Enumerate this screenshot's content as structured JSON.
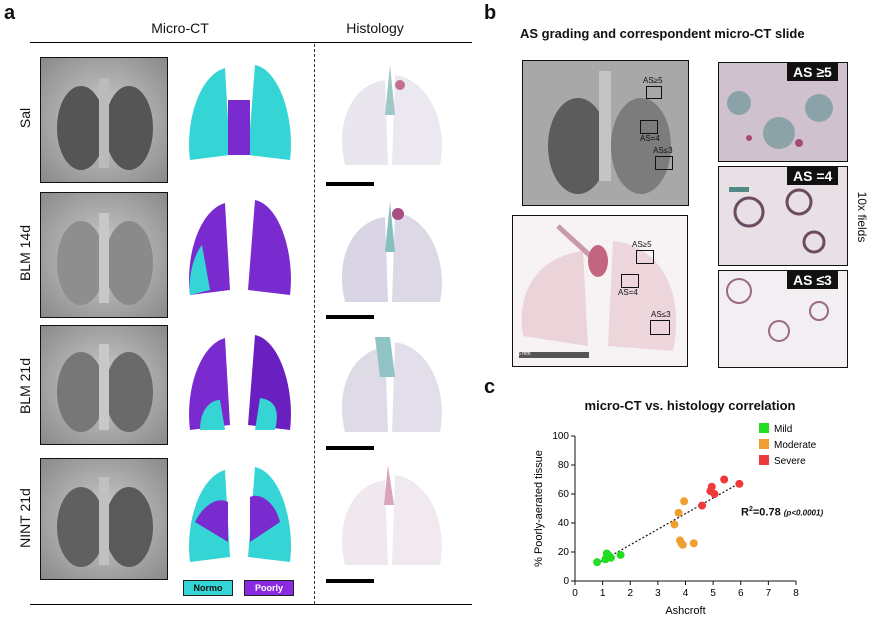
{
  "panel_a": {
    "letter": "a",
    "col_microct": "Micro-CT",
    "col_histology": "Histology",
    "rows": [
      "Sal",
      "BLM 14d",
      "BLM 21d",
      "NINT 21d"
    ],
    "legend": {
      "normo": "Normo",
      "poorly": "Poorly",
      "normo_color": "#35d5d5",
      "poorly_color": "#8a2be2"
    }
  },
  "panel_b": {
    "letter": "b",
    "title": "AS grading and correspondent micro-CT slide",
    "roi": [
      "AS≥5",
      "AS=4",
      "AS≤3"
    ],
    "fields": [
      "AS ≥5",
      "AS =4",
      "AS ≤3"
    ],
    "side_label": "10x fields",
    "scale_label": "5 mm"
  },
  "panel_c": {
    "letter": "c",
    "title": "micro-CT vs. histology correlation",
    "r2_text": "R",
    "r2_sup": "2",
    "r2_value": "=0.78",
    "p_text": "(p<0.0001)"
  },
  "chart_data": {
    "type": "scatter",
    "title": "micro-CT vs. histology correlation",
    "xlabel": "Ashcroft",
    "ylabel": "% Poorly-aerated tissue",
    "xlim": [
      0,
      8
    ],
    "ylim": [
      0,
      100
    ],
    "xticks": [
      0,
      1,
      2,
      3,
      4,
      5,
      6,
      7,
      8
    ],
    "yticks": [
      0,
      20,
      40,
      60,
      80,
      100
    ],
    "legend": [
      {
        "name": "Mild",
        "color": "#22dd22"
      },
      {
        "name": "Moderate",
        "color": "#f0a030"
      },
      {
        "name": "Severe",
        "color": "#ee3a3a"
      }
    ],
    "series": [
      {
        "name": "Mild",
        "color": "#22dd22",
        "points": [
          [
            0.8,
            13
          ],
          [
            1.1,
            15
          ],
          [
            1.15,
            19
          ],
          [
            1.2,
            18
          ],
          [
            1.25,
            17
          ],
          [
            1.3,
            16
          ],
          [
            1.65,
            18
          ]
        ]
      },
      {
        "name": "Moderate",
        "color": "#f0a030",
        "points": [
          [
            3.6,
            39
          ],
          [
            3.75,
            47
          ],
          [
            3.8,
            28
          ],
          [
            3.85,
            26
          ],
          [
            3.9,
            25
          ],
          [
            3.95,
            55
          ],
          [
            4.3,
            26
          ]
        ]
      },
      {
        "name": "Severe",
        "color": "#ee3a3a",
        "points": [
          [
            4.6,
            52
          ],
          [
            4.9,
            62
          ],
          [
            4.95,
            65
          ],
          [
            5.05,
            60
          ],
          [
            5.4,
            70
          ],
          [
            5.95,
            67
          ]
        ]
      }
    ],
    "trendline": {
      "x": [
        0.8,
        6.0
      ],
      "y": [
        12,
        68
      ]
    },
    "annotation": "R2=0.78 (p<0.0001)"
  }
}
